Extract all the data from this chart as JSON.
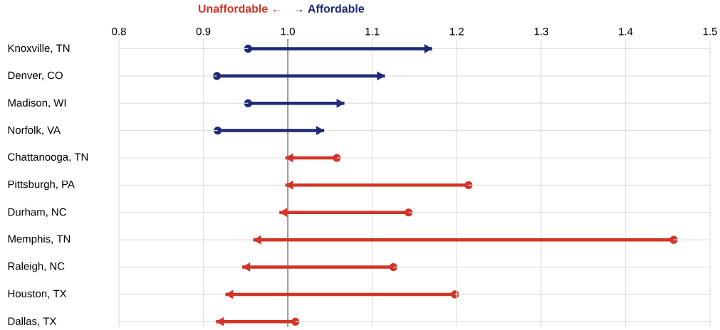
{
  "chart_data": {
    "type": "bar",
    "orientation": "horizontal",
    "categories": [
      "Knoxville, TN",
      "Denver, CO",
      "Madison, WI",
      "Norfolk, VA",
      "Chattanooga, TN",
      "Pittsburgh, PA",
      "Durham, NC",
      "Memphis, TN",
      "Raleigh, NC",
      "Houston, TX",
      "Dallas, TX"
    ],
    "series": [
      {
        "name": "Unaffordable ←",
        "color": "#d13527",
        "base": [
          null,
          null,
          null,
          null,
          1.058,
          1.214,
          1.143,
          1.457,
          1.125,
          1.198,
          1.009
        ],
        "values": [
          null,
          null,
          null,
          null,
          -0.061,
          -0.217,
          -0.153,
          -0.498,
          -0.179,
          -0.272,
          -0.094
        ]
      },
      {
        "name": "→ Affordable",
        "color": "#1e2a78",
        "base": [
          0.953,
          0.916,
          0.953,
          0.917,
          null,
          null,
          null,
          null,
          null,
          null,
          null
        ],
        "values": [
          0.218,
          0.199,
          0.114,
          0.126,
          null,
          null,
          null,
          null,
          null,
          null,
          null
        ]
      }
    ],
    "xlim": [
      0.8,
      1.5
    ],
    "xticks": [
      0.8,
      0.9,
      {
        "value": 1,
        "label": "1.0"
      },
      1.1,
      1.2,
      1.3,
      1.4,
      1.5
    ],
    "ref_lines": [
      {
        "axis": "x",
        "value": 1,
        "color": "#555555"
      }
    ],
    "grid": true,
    "marker": "circle"
  }
}
